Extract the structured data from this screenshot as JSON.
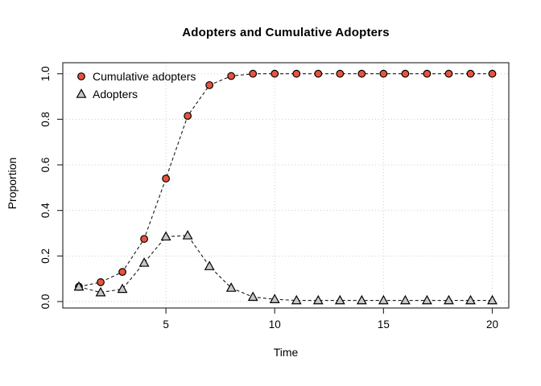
{
  "chart_data": {
    "type": "line",
    "title": "Adopters and Cumulative Adopters",
    "xlabel": "Time",
    "ylabel": "Proportion",
    "x": [
      1,
      2,
      3,
      4,
      5,
      6,
      7,
      8,
      9,
      10,
      11,
      12,
      13,
      14,
      15,
      16,
      17,
      18,
      19,
      20
    ],
    "series": [
      {
        "name": "Cumulative adopters",
        "marker": "circle",
        "marker_fill": "#E9533C",
        "values": [
          0.065,
          0.085,
          0.13,
          0.275,
          0.54,
          0.815,
          0.95,
          0.99,
          1.0,
          1.0,
          1.0,
          1.0,
          1.0,
          1.0,
          1.0,
          1.0,
          1.0,
          1.0,
          1.0,
          1.0
        ]
      },
      {
        "name": "Adopters",
        "marker": "triangle",
        "marker_fill": "#C8C8C8",
        "values": [
          0.065,
          0.04,
          0.055,
          0.17,
          0.285,
          0.29,
          0.155,
          0.06,
          0.02,
          0.01,
          0.005,
          0.005,
          0.005,
          0.005,
          0.005,
          0.005,
          0.005,
          0.005,
          0.005,
          0.005
        ]
      }
    ],
    "xlim": [
      1,
      20
    ],
    "ylim": [
      0,
      1
    ],
    "x_ticks": [
      5,
      10,
      15,
      20
    ],
    "x_tick_labels": [
      "5",
      "10",
      "15",
      "20"
    ],
    "y_ticks": [
      0.0,
      0.2,
      0.4,
      0.6,
      0.8,
      1.0
    ],
    "y_tick_labels": [
      "0.0",
      "0.2",
      "0.4",
      "0.6",
      "0.8",
      "1.0"
    ],
    "grid": true,
    "grid_style": "dotted",
    "grid_color": "#CDCDCD",
    "line_style": "dashed",
    "line_color": "#1a1a1a",
    "marker_stroke": "#000000",
    "axis_color": "#333333",
    "legend_position": "top-left"
  }
}
